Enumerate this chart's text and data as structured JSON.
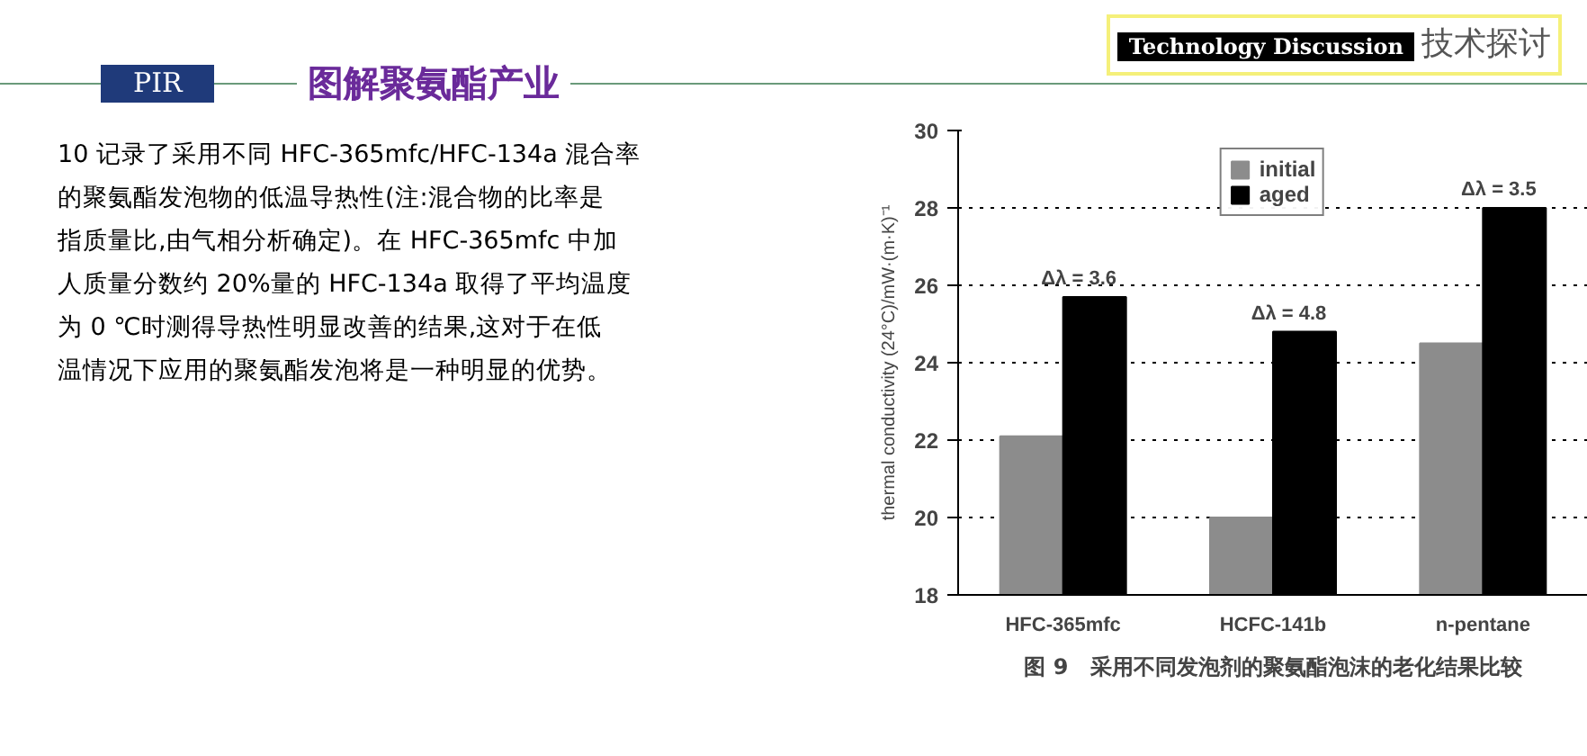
{
  "chart_data": {
    "type": "bar",
    "title": "图 9　采用不同发泡剂的聚氨酯泡沫的老化结果比较",
    "categories": [
      "HFC-365mfc",
      "HCFC-141b",
      "n-pentane"
    ],
    "series": [
      {
        "name": "initial",
        "color": "#8c8c8c",
        "values": [
          22.1,
          20.0,
          24.5
        ]
      },
      {
        "name": "aged",
        "color": "#000000",
        "values": [
          25.7,
          24.8,
          28.0
        ]
      }
    ],
    "ylabel": "thermal conductivity (24°C)/mW·(m·K)⁻¹",
    "ylim": [
      18,
      30
    ],
    "yticks": [
      18,
      20,
      22,
      24,
      26,
      28,
      30
    ],
    "grid": "y",
    "legend": "top",
    "annotations": [
      "Technology Discussion",
      "技术探讨",
      "PIR",
      "图解聚氨酯产业",
      "10 记录了采用不同 HFC-365mfc/HFC-134a 混合率",
      "的聚氨酯发泡物的低温导热性(注:混合物的比率是",
      "指质量比,由气相分析确定)。在 HFC-365mfc 中加",
      "人质量分数约 20%量的 HFC-134a 取得了平均温度",
      "为 0 ℃时测得导热性明显改善的结果,这对于在低",
      "温情况下应用的聚氨酯发泡将是一种明显的优势。",
      {
        "text": "Δλ = 3.6",
        "x": "HFC-365mfc",
        "y": 25.7
      },
      {
        "text": "Δλ = 4.8",
        "x": "HCFC-141b",
        "y": 24.8
      },
      {
        "text": "Δλ = 3.5",
        "x": "n-pentane",
        "y": 28.0
      }
    ]
  }
}
